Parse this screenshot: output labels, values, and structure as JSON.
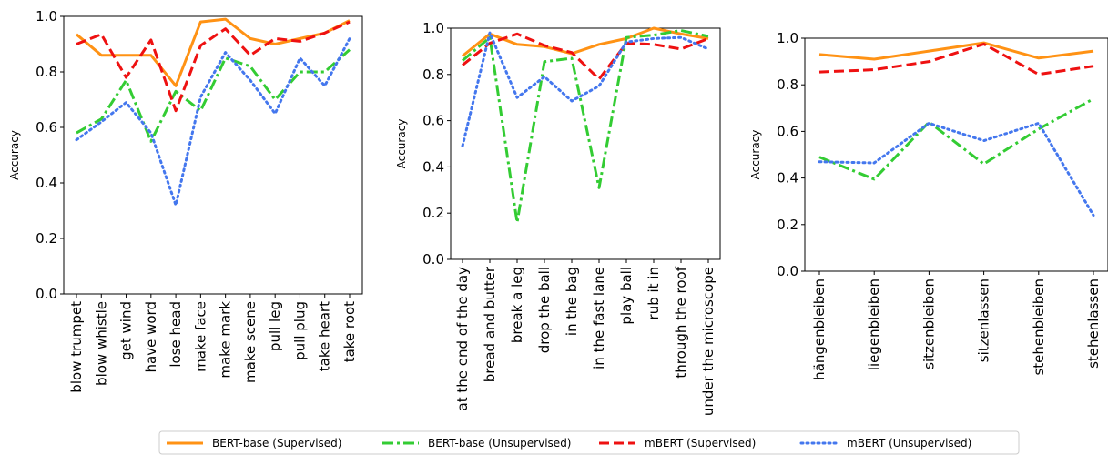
{
  "legend": {
    "placement": "bottom-center",
    "entries": [
      {
        "label": "BERT-base (Supervised)",
        "color": "#ff9214",
        "style": "solid"
      },
      {
        "label": "BERT-base (Unsupervised)",
        "color": "#33cc33",
        "style": "dashdot"
      },
      {
        "label": "mBERT (Supervised)",
        "color": "#ee1111",
        "style": "dashed"
      },
      {
        "label": "mBERT (Unsupervised)",
        "color": "#4477ee",
        "style": "dotted"
      }
    ]
  },
  "chart_data": [
    {
      "type": "line",
      "ylabel": "Accuracy",
      "ylim": [
        0.0,
        1.0
      ],
      "yticks": [
        "0.0",
        "0.2",
        "0.4",
        "0.6",
        "0.8",
        "1.0"
      ],
      "categories": [
        "blow trumpet",
        "blow whistle",
        "get wind",
        "have word",
        "lose head",
        "make face",
        "make mark",
        "make scene",
        "pull leg",
        "pull plug",
        "take heart",
        "take root"
      ],
      "series": [
        {
          "name": "BERT-base (Supervised)",
          "values": [
            0.935,
            0.86,
            0.86,
            0.86,
            0.75,
            0.98,
            0.99,
            0.92,
            0.9,
            0.92,
            0.94,
            0.985
          ]
        },
        {
          "name": "BERT-base (Unsupervised)",
          "values": [
            0.58,
            0.63,
            0.77,
            0.55,
            0.73,
            0.66,
            0.85,
            0.82,
            0.7,
            0.8,
            0.8,
            0.88
          ]
        },
        {
          "name": "mBERT (Supervised)",
          "values": [
            0.9,
            0.935,
            0.78,
            0.915,
            0.66,
            0.895,
            0.955,
            0.86,
            0.92,
            0.91,
            0.94,
            0.98
          ]
        },
        {
          "name": "mBERT (Unsupervised)",
          "values": [
            0.555,
            0.62,
            0.69,
            0.58,
            0.32,
            0.71,
            0.87,
            0.77,
            0.65,
            0.85,
            0.75,
            0.92
          ]
        }
      ]
    },
    {
      "type": "line",
      "ylabel": "Accuracy",
      "ylim": [
        0.0,
        1.0
      ],
      "yticks": [
        "0.0",
        "0.2",
        "0.4",
        "0.6",
        "0.8",
        "1.0"
      ],
      "categories": [
        "at the end of the day",
        "bread and butter",
        "break a leg",
        "drop the ball",
        "in the bag",
        "in the fast lane",
        "play ball",
        "rub it in",
        "through the roof",
        "under the microscope"
      ],
      "series": [
        {
          "name": "BERT-base (Supervised)",
          "values": [
            0.88,
            0.975,
            0.93,
            0.92,
            0.89,
            0.93,
            0.955,
            1.0,
            0.975,
            0.955
          ]
        },
        {
          "name": "BERT-base (Unsupervised)",
          "values": [
            0.86,
            0.96,
            0.16,
            0.855,
            0.87,
            0.31,
            0.96,
            0.97,
            0.99,
            0.965
          ]
        },
        {
          "name": "mBERT (Supervised)",
          "values": [
            0.84,
            0.935,
            0.975,
            0.925,
            0.895,
            0.78,
            0.935,
            0.93,
            0.91,
            0.955
          ]
        },
        {
          "name": "mBERT (Unsupervised)",
          "values": [
            0.49,
            0.98,
            0.7,
            0.79,
            0.685,
            0.75,
            0.94,
            0.955,
            0.96,
            0.91
          ]
        }
      ]
    },
    {
      "type": "line",
      "ylabel": "Accuracy",
      "ylim": [
        0.0,
        1.0
      ],
      "yticks": [
        "0.0",
        "0.2",
        "0.4",
        "0.6",
        "0.8",
        "1.0"
      ],
      "categories": [
        "hängenbleiben",
        "liegenbleiben",
        "sitzenbleiben",
        "sitzenlassen",
        "stehenbleiben",
        "stehenlassen"
      ],
      "series": [
        {
          "name": "BERT-base (Supervised)",
          "values": [
            0.93,
            0.91,
            0.945,
            0.98,
            0.915,
            0.945
          ]
        },
        {
          "name": "BERT-base (Unsupervised)",
          "values": [
            0.49,
            0.395,
            0.64,
            0.46,
            0.61,
            0.74
          ]
        },
        {
          "name": "mBERT (Supervised)",
          "values": [
            0.855,
            0.865,
            0.9,
            0.975,
            0.845,
            0.88
          ]
        },
        {
          "name": "mBERT (Unsupervised)",
          "values": [
            0.47,
            0.465,
            0.635,
            0.56,
            0.635,
            0.24
          ]
        }
      ]
    }
  ]
}
